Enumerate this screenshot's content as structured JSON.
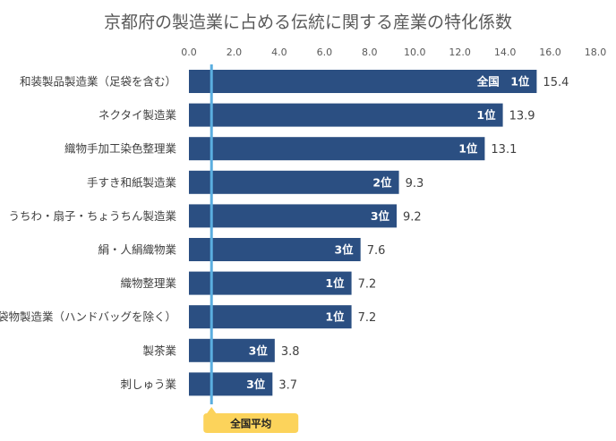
{
  "chart_data": {
    "type": "bar",
    "orientation": "horizontal",
    "title": "京都府の製造業に占める伝統に関する産業の特化係数",
    "xlim": [
      0,
      18
    ],
    "xticks": [
      "0.0",
      "2.0",
      "4.0",
      "6.0",
      "8.0",
      "10.0",
      "12.0",
      "14.0",
      "16.0",
      "18.0"
    ],
    "categories": [
      "和装製品製造業（足袋を含む）",
      "ネクタイ製造業",
      "織物手加工染色整理業",
      "手すき和紙製造業",
      "うちわ・扇子・ちょうちん製造業",
      "絹・人絹織物業",
      "織物整理業",
      "袋物製造業（ハンドバッグを除く）",
      "製茶業",
      "刺しゅう業"
    ],
    "values": [
      15.4,
      13.9,
      13.1,
      9.3,
      9.2,
      7.6,
      7.2,
      7.2,
      3.8,
      3.7
    ],
    "value_labels": [
      "15.4",
      "13.9",
      "13.1",
      "9.3",
      "9.2",
      "7.6",
      "7.2",
      "7.2",
      "3.8",
      "3.7"
    ],
    "rank_labels": [
      "全国　1位",
      "1位",
      "1位",
      "2位",
      "3位",
      "3位",
      "1位",
      "1位",
      "3位",
      "3位"
    ],
    "reference_line": {
      "value": 1.0,
      "label": "全国平均"
    },
    "bar_color": "#2b4f82",
    "reference_color": "#5aaee0",
    "reference_label_bg": "#fcd35b"
  }
}
